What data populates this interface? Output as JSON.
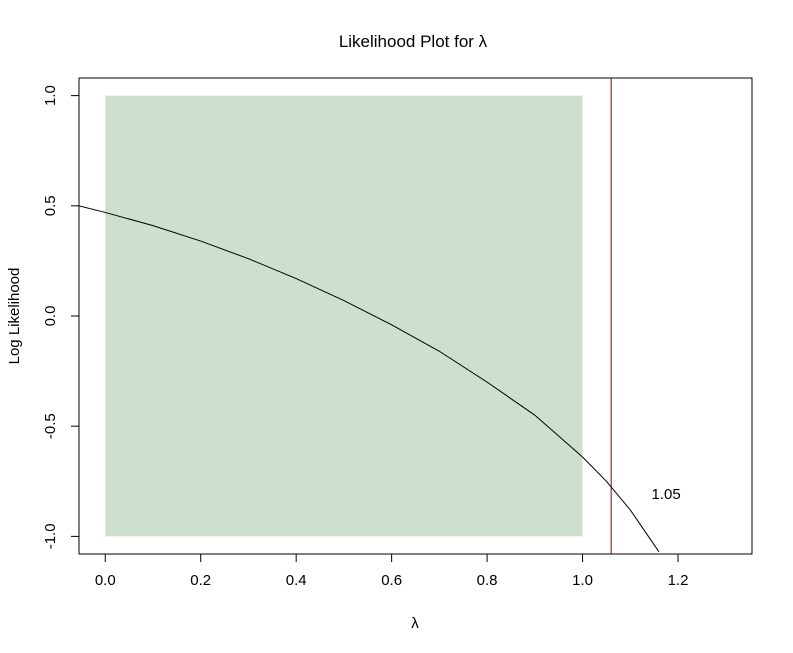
{
  "chart_data": {
    "type": "line",
    "title": "Likelihood Plot for λ",
    "xlabel": "λ",
    "ylabel": "Log Likelihood",
    "xlim": [
      -0.055,
      1.355
    ],
    "ylim": [
      -1.08,
      1.08
    ],
    "x_ticks": [
      0.0,
      0.2,
      0.4,
      0.6,
      0.8,
      1.0,
      1.2
    ],
    "x_tick_labels": [
      "0.0",
      "0.2",
      "0.4",
      "0.6",
      "0.8",
      "1.0",
      "1.2"
    ],
    "y_ticks": [
      -1.0,
      -0.5,
      0.0,
      0.5,
      1.0
    ],
    "y_tick_labels": [
      "-1.0",
      "-0.5",
      "0.0",
      "0.5",
      "1.0"
    ],
    "grid": false,
    "shaded_region": {
      "x": [
        0.0,
        1.0
      ],
      "y": [
        -1.0,
        1.0
      ],
      "color": "#cde0cd"
    },
    "series": [
      {
        "color": "#000000",
        "x": [
          -0.055,
          0.0,
          0.1,
          0.2,
          0.3,
          0.4,
          0.5,
          0.6,
          0.7,
          0.8,
          0.9,
          1.0,
          1.05,
          1.1,
          1.16
        ],
        "y": [
          0.5,
          0.47,
          0.41,
          0.34,
          0.26,
          0.17,
          0.07,
          -0.04,
          -0.16,
          -0.3,
          -0.45,
          -0.64,
          -0.75,
          -0.88,
          -1.07
        ]
      }
    ],
    "vline": {
      "x": 1.06,
      "color": "#b22222"
    },
    "annotations": [
      {
        "text": "1.05",
        "x": 1.175,
        "y": -0.83
      }
    ]
  }
}
